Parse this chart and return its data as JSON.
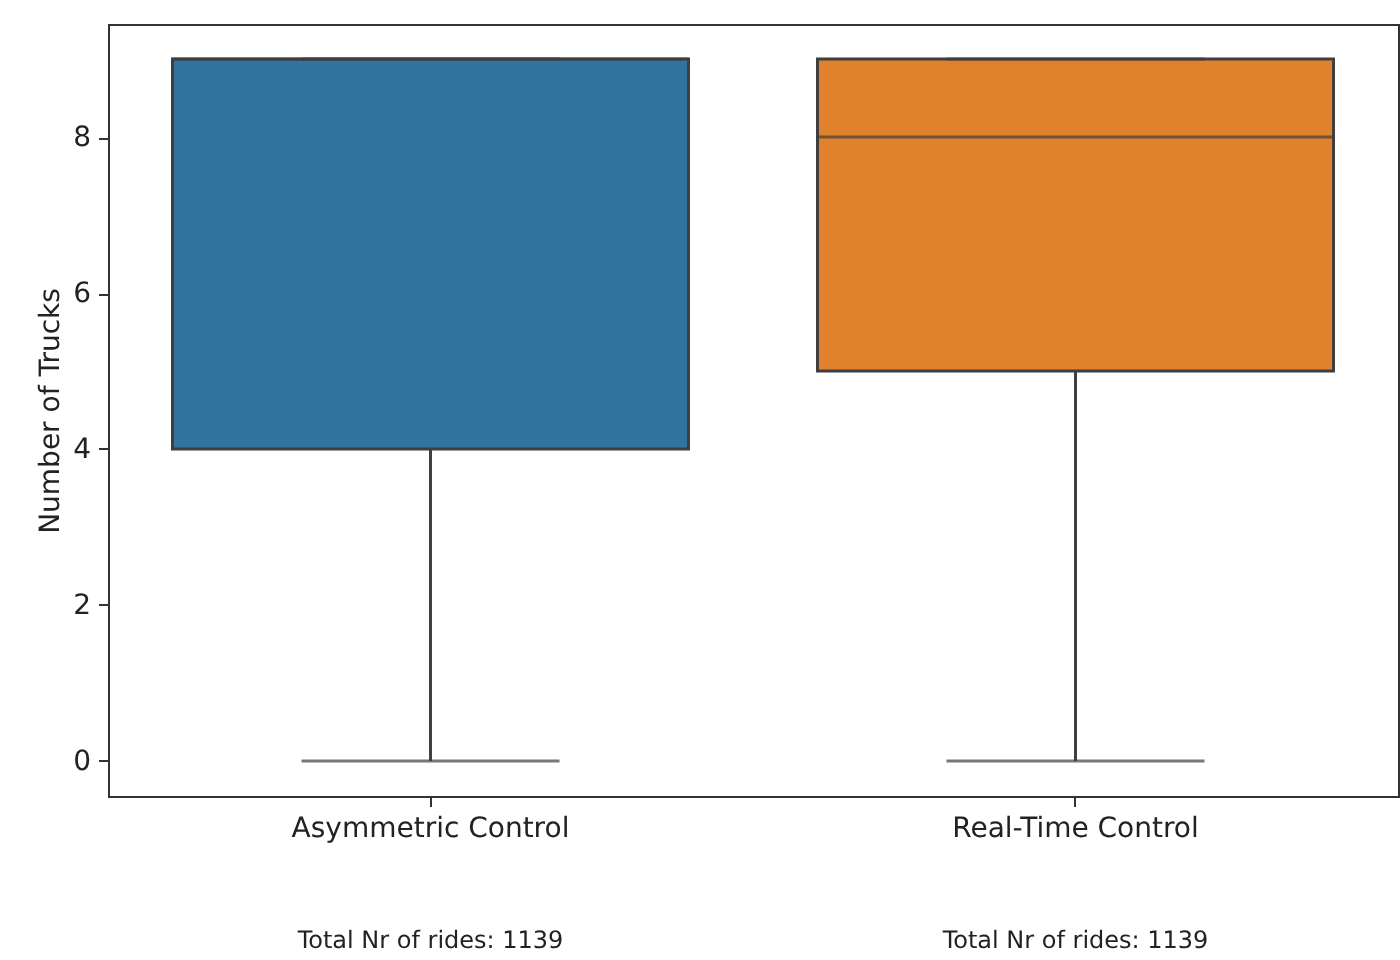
{
  "chart_data": {
    "type": "box",
    "ylabel": "Number of Trucks",
    "categories": [
      "Asymmetric Control",
      "Real-Time Control"
    ],
    "colors": [
      "#3274a1",
      "#e1812c"
    ],
    "boxes": [
      {
        "low": 0,
        "q1": 4,
        "median": 9,
        "q3": 9,
        "high": 9
      },
      {
        "low": 0,
        "q1": 5,
        "median": 8,
        "q3": 9,
        "high": 9
      }
    ],
    "ylim": [
      -0.45,
      9.45
    ],
    "yticks": [
      0,
      2,
      4,
      6,
      8
    ],
    "grid": false,
    "annotations": [
      "Total Nr of rides: 1139",
      "Total Nr of rides: 1139"
    ]
  }
}
